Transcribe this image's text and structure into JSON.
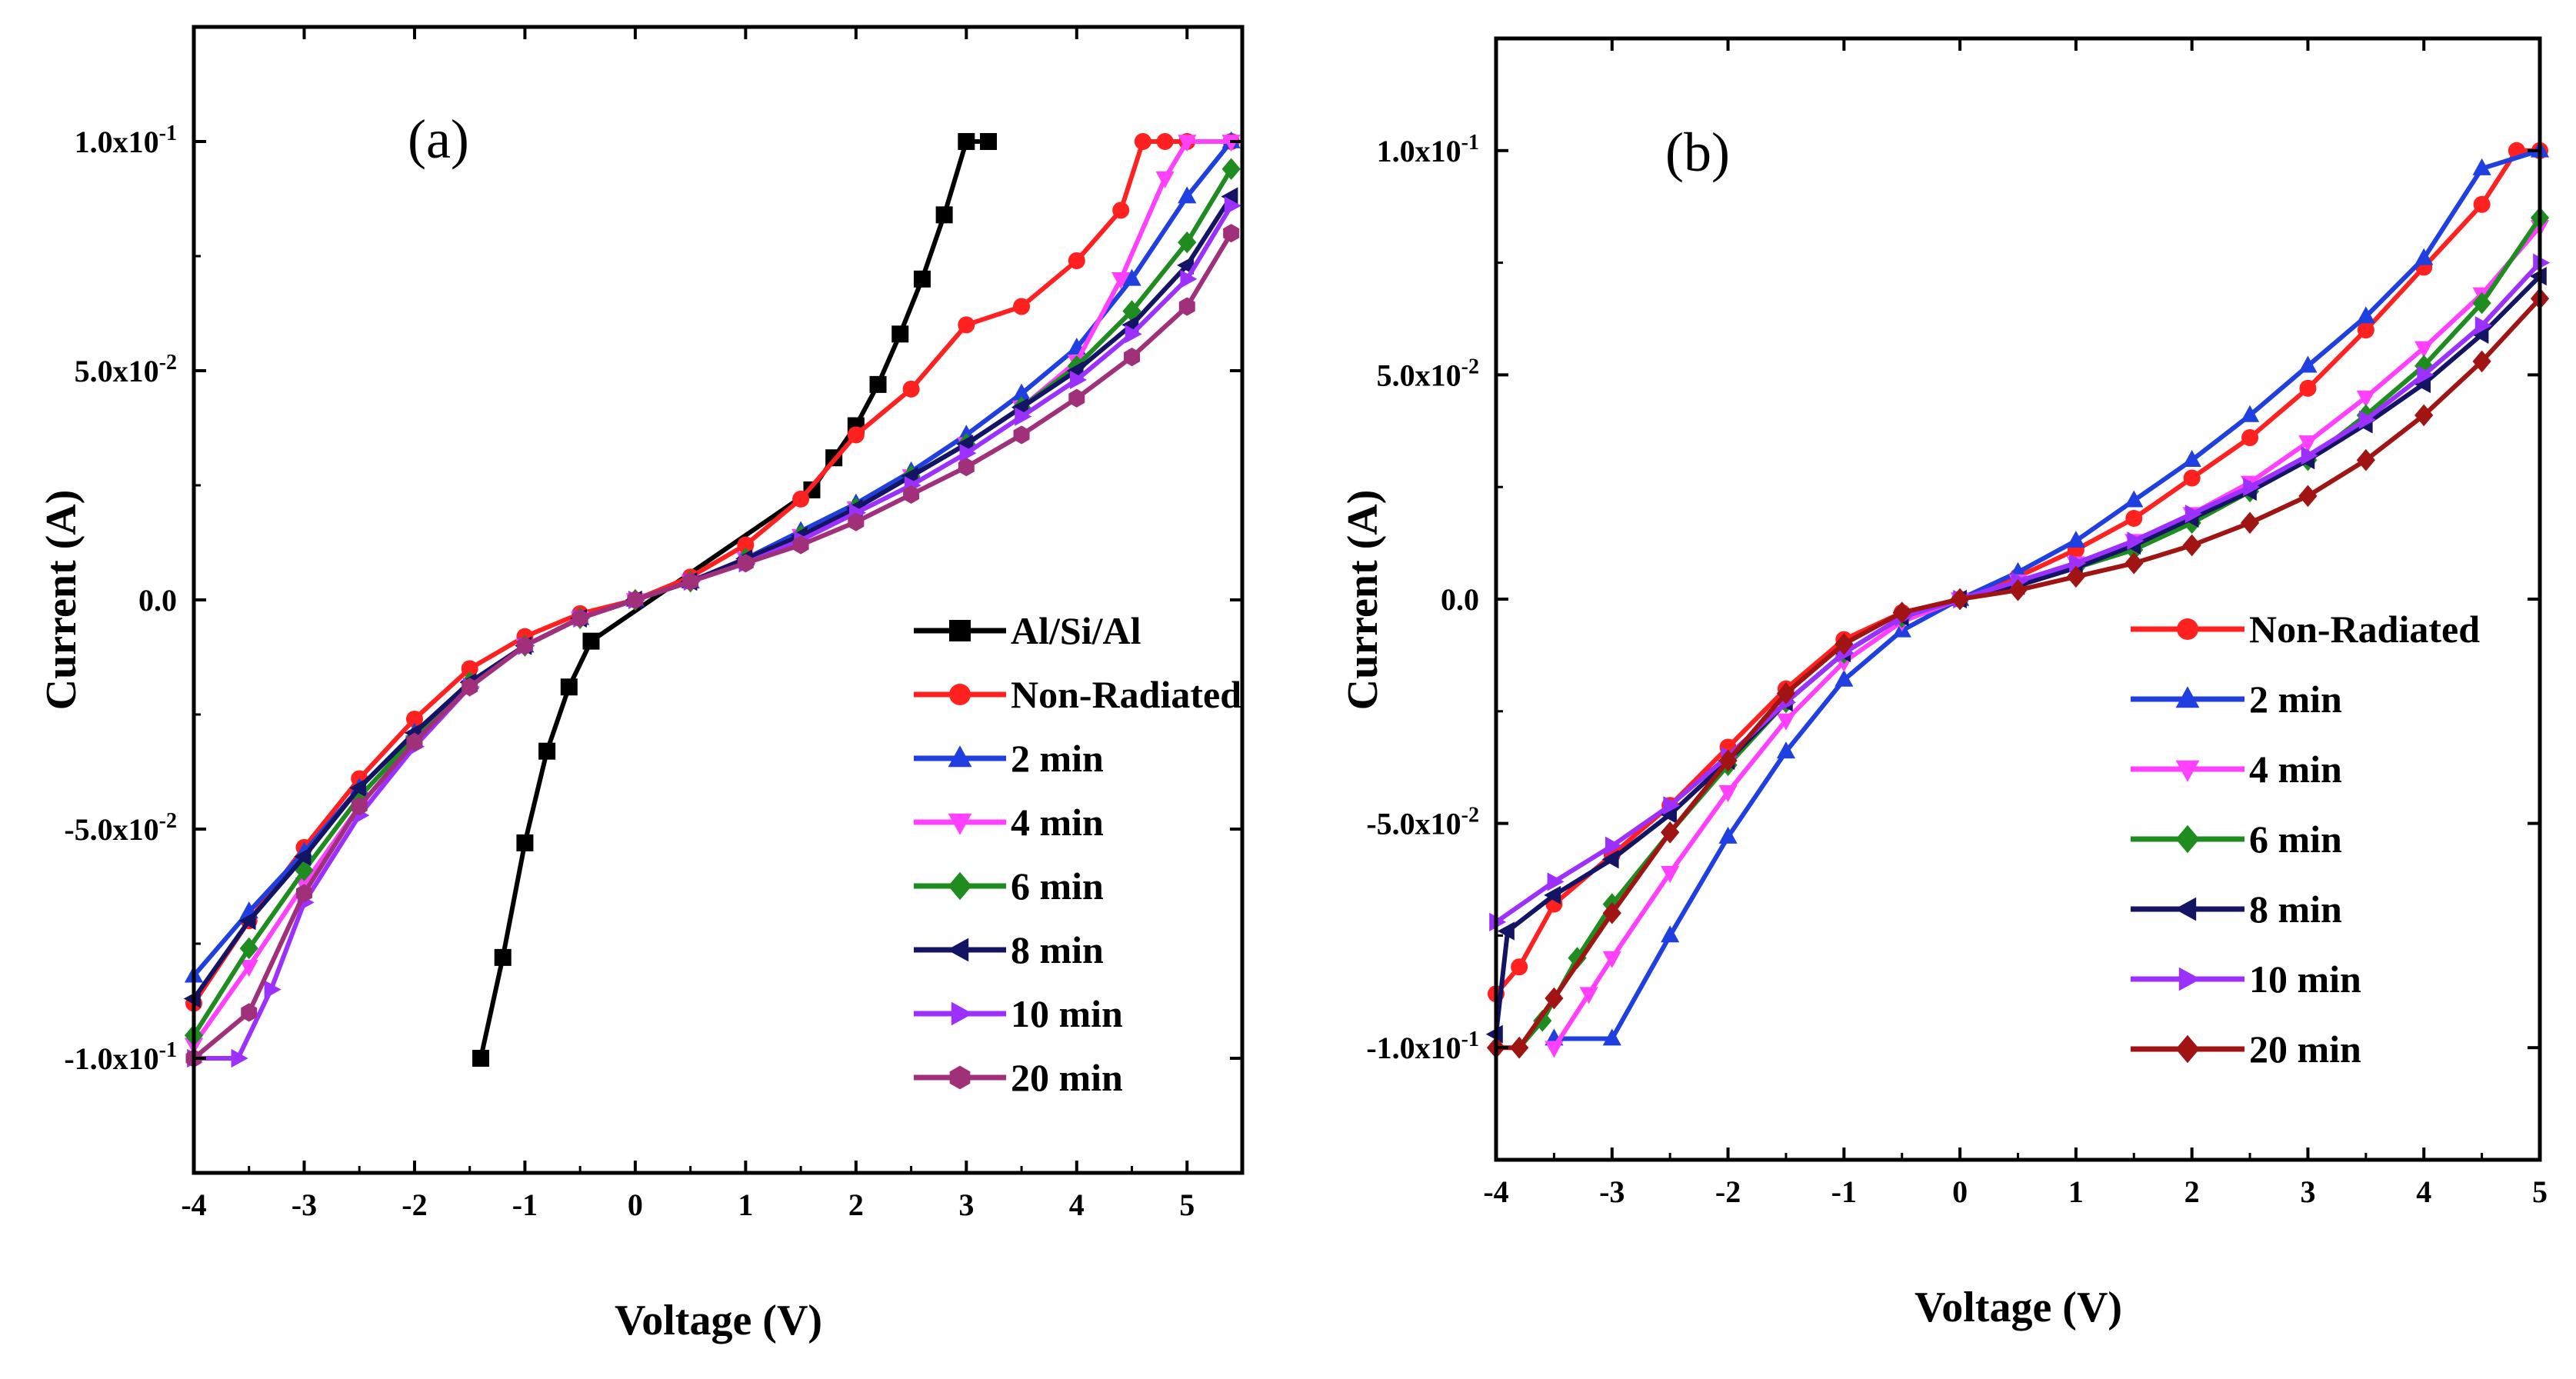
{
  "chart_data": [
    {
      "type": "line",
      "panel_label": "(a)",
      "xlabel": "Voltage (V)",
      "ylabel": "Current (A)",
      "xlim": [
        -4,
        5.5
      ],
      "ylim": [
        -0.125,
        0.125
      ],
      "xticks": [
        -4,
        -3,
        -2,
        -1,
        0,
        1,
        2,
        3,
        4,
        5
      ],
      "xtick_labels": [
        "-4",
        "-3",
        "-2",
        "-1",
        "0",
        "1",
        "2",
        "3",
        "4",
        "5"
      ],
      "yticks": [
        -0.1,
        -0.05,
        0,
        0.05,
        0.1
      ],
      "ytick_labels": [
        "-1.0x10-1",
        "-5.0x10-2",
        "0.0",
        "5.0x10-2",
        "1.0x10-1"
      ],
      "legend_position": "bottom-right",
      "series": [
        {
          "name": "Al/Si/Al",
          "color": "#000000",
          "marker": "square",
          "x": [
            -1.4,
            -1.2,
            -1.0,
            -0.8,
            -0.6,
            -0.4,
            1.6,
            1.8,
            2.0,
            2.2,
            2.4,
            2.6,
            2.8,
            3.0,
            3.2
          ],
          "y": [
            -0.1,
            -0.078,
            -0.053,
            -0.033,
            -0.019,
            -0.009,
            0.024,
            0.031,
            0.038,
            0.047,
            0.058,
            0.07,
            0.084,
            0.1,
            0.1
          ]
        },
        {
          "name": "Non-Radiated",
          "color": "#ff2020",
          "marker": "circle",
          "x": [
            -4.0,
            -3.5,
            -3.0,
            -2.5,
            -2.0,
            -1.5,
            -1.0,
            -0.5,
            0.0,
            0.5,
            1.0,
            1.5,
            2.0,
            2.5,
            3.0,
            3.5,
            4.0,
            4.4,
            4.6,
            4.8,
            5.0,
            5.4
          ],
          "y": [
            -0.088,
            -0.07,
            -0.054,
            -0.039,
            -0.026,
            -0.015,
            -0.008,
            -0.003,
            0.0,
            0.005,
            0.012,
            0.022,
            0.036,
            0.046,
            0.06,
            0.064,
            0.074,
            0.085,
            0.1,
            0.1,
            0.1,
            0.1
          ]
        },
        {
          "name": "2 min",
          "color": "#1f3fe0",
          "marker": "triangle-up",
          "x": [
            -4.0,
            -3.5,
            -3.0,
            -2.5,
            -2.0,
            -1.5,
            -1.0,
            -0.5,
            0.0,
            0.5,
            1.0,
            1.5,
            2.0,
            2.5,
            3.0,
            3.5,
            4.0,
            4.5,
            5.0,
            5.4
          ],
          "y": [
            -0.082,
            -0.068,
            -0.055,
            -0.041,
            -0.029,
            -0.018,
            -0.01,
            -0.004,
            0.0,
            0.004,
            0.009,
            0.015,
            0.021,
            0.028,
            0.036,
            0.045,
            0.055,
            0.07,
            0.088,
            0.1
          ]
        },
        {
          "name": "4 min",
          "color": "#ff40ff",
          "marker": "triangle-down",
          "x": [
            -4.0,
            -3.5,
            -3.0,
            -2.5,
            -2.0,
            -1.5,
            -1.0,
            -0.5,
            0.0,
            0.5,
            1.0,
            1.5,
            2.0,
            2.5,
            3.0,
            3.5,
            4.0,
            4.4,
            4.8,
            5.0,
            5.4
          ],
          "y": [
            -0.097,
            -0.08,
            -0.062,
            -0.045,
            -0.031,
            -0.019,
            -0.01,
            -0.004,
            0.0,
            0.004,
            0.009,
            0.014,
            0.02,
            0.027,
            0.034,
            0.042,
            0.052,
            0.07,
            0.092,
            0.1,
            0.1
          ]
        },
        {
          "name": "6 min",
          "color": "#1e8c1e",
          "marker": "diamond",
          "x": [
            -4.0,
            -3.5,
            -3.0,
            -2.5,
            -2.0,
            -1.5,
            -1.0,
            -0.5,
            0.0,
            0.5,
            1.0,
            1.5,
            2.0,
            2.5,
            3.0,
            3.5,
            4.0,
            4.5,
            5.0,
            5.4
          ],
          "y": [
            -0.095,
            -0.076,
            -0.059,
            -0.043,
            -0.03,
            -0.018,
            -0.01,
            -0.004,
            0.0,
            0.004,
            0.009,
            0.014,
            0.02,
            0.027,
            0.034,
            0.042,
            0.051,
            0.063,
            0.078,
            0.094
          ]
        },
        {
          "name": "8 min",
          "color": "#141464",
          "marker": "triangle-left",
          "x": [
            -4.0,
            -3.5,
            -3.0,
            -2.5,
            -2.0,
            -1.5,
            -1.0,
            -0.5,
            0.0,
            0.5,
            1.0,
            1.5,
            2.0,
            2.5,
            3.0,
            3.5,
            4.0,
            4.5,
            5.0,
            5.4
          ],
          "y": [
            -0.087,
            -0.07,
            -0.056,
            -0.041,
            -0.029,
            -0.018,
            -0.01,
            -0.004,
            0.0,
            0.004,
            0.009,
            0.014,
            0.02,
            0.027,
            0.034,
            0.042,
            0.05,
            0.06,
            0.073,
            0.088
          ]
        },
        {
          "name": "10 min",
          "color": "#9b30ff",
          "marker": "triangle-right",
          "x": [
            -4.0,
            -3.6,
            -3.3,
            -3.0,
            -2.5,
            -2.0,
            -1.5,
            -1.0,
            -0.5,
            0.0,
            0.5,
            1.0,
            1.5,
            2.0,
            2.5,
            3.0,
            3.5,
            4.0,
            4.5,
            5.0,
            5.4
          ],
          "y": [
            -0.1,
            -0.1,
            -0.085,
            -0.066,
            -0.047,
            -0.032,
            -0.019,
            -0.01,
            -0.004,
            0.0,
            0.004,
            0.008,
            0.013,
            0.019,
            0.025,
            0.032,
            0.04,
            0.048,
            0.058,
            0.07,
            0.086
          ]
        },
        {
          "name": "20 min",
          "color": "#a0307a",
          "marker": "hexagon",
          "x": [
            -4.0,
            -3.5,
            -3.0,
            -2.5,
            -2.0,
            -1.5,
            -1.0,
            -0.5,
            0.0,
            0.5,
            1.0,
            1.5,
            2.0,
            2.5,
            3.0,
            3.5,
            4.0,
            4.5,
            5.0,
            5.4
          ],
          "y": [
            -0.1,
            -0.09,
            -0.064,
            -0.045,
            -0.031,
            -0.019,
            -0.01,
            -0.004,
            0.0,
            0.004,
            0.008,
            0.012,
            0.017,
            0.023,
            0.029,
            0.036,
            0.044,
            0.053,
            0.064,
            0.08
          ]
        }
      ]
    },
    {
      "type": "line",
      "panel_label": "(b)",
      "xlabel": "Voltage (V)",
      "ylabel": "Current (A)",
      "xlim": [
        -4,
        5
      ],
      "ylim": [
        -0.125,
        0.125
      ],
      "xticks": [
        -4,
        -3,
        -2,
        -1,
        0,
        1,
        2,
        3,
        4,
        5
      ],
      "xtick_labels": [
        "-4",
        "-3",
        "-2",
        "-1",
        "0",
        "1",
        "2",
        "3",
        "4",
        "5"
      ],
      "yticks": [
        -0.1,
        -0.05,
        0,
        0.05,
        0.1
      ],
      "ytick_labels": [
        "-1.0x10-1",
        "-5.0x10-2",
        "0.0",
        "5.0x10-2",
        "1.0x10-1"
      ],
      "legend_position": "bottom-right",
      "series": [
        {
          "name": "Non-Radiated",
          "color": "#ff2020",
          "marker": "circle",
          "x": [
            -4.0,
            -3.8,
            -3.5,
            -3.0,
            -2.5,
            -2.0,
            -1.5,
            -1.0,
            -0.5,
            0.0,
            0.5,
            1.0,
            1.5,
            2.0,
            2.5,
            3.0,
            3.5,
            4.0,
            4.5,
            4.8,
            5.0
          ],
          "y": [
            -0.088,
            -0.082,
            -0.068,
            -0.057,
            -0.046,
            -0.033,
            -0.02,
            -0.009,
            -0.003,
            0.0,
            0.005,
            0.011,
            0.018,
            0.027,
            0.036,
            0.047,
            0.06,
            0.074,
            0.088,
            0.1,
            0.1
          ]
        },
        {
          "name": "2 min",
          "color": "#1f3fe0",
          "marker": "triangle-up",
          "x": [
            -3.5,
            -3.0,
            -2.5,
            -2.0,
            -1.5,
            -1.0,
            -0.5,
            0.0,
            0.5,
            1.0,
            1.5,
            2.0,
            2.5,
            3.0,
            3.5,
            4.0,
            4.5,
            5.0
          ],
          "y": [
            -0.098,
            -0.098,
            -0.075,
            -0.053,
            -0.034,
            -0.018,
            -0.007,
            0.0,
            0.006,
            0.013,
            0.022,
            0.031,
            0.041,
            0.052,
            0.063,
            0.076,
            0.096,
            0.1
          ]
        },
        {
          "name": "4 min",
          "color": "#ff40ff",
          "marker": "triangle-down",
          "x": [
            -3.5,
            -3.2,
            -3.0,
            -2.5,
            -2.0,
            -1.5,
            -1.0,
            -0.5,
            0.0,
            0.5,
            1.0,
            1.5,
            2.0,
            2.5,
            3.0,
            3.5,
            4.0,
            4.5,
            5.0
          ],
          "y": [
            -0.1,
            -0.088,
            -0.08,
            -0.061,
            -0.043,
            -0.027,
            -0.014,
            -0.005,
            0.0,
            0.004,
            0.008,
            0.013,
            0.019,
            0.026,
            0.035,
            0.045,
            0.056,
            0.068,
            0.083
          ]
        },
        {
          "name": "6 min",
          "color": "#1e8c1e",
          "marker": "diamond",
          "x": [
            -3.8,
            -3.6,
            -3.3,
            -3.0,
            -2.5,
            -2.0,
            -1.5,
            -1.0,
            -0.5,
            0.0,
            0.5,
            1.0,
            1.5,
            2.0,
            2.5,
            3.0,
            3.5,
            4.0,
            4.5,
            5.0
          ],
          "y": [
            -0.1,
            -0.094,
            -0.08,
            -0.068,
            -0.052,
            -0.037,
            -0.023,
            -0.012,
            -0.004,
            0.0,
            0.003,
            0.007,
            0.011,
            0.017,
            0.024,
            0.031,
            0.041,
            0.052,
            0.066,
            0.085
          ]
        },
        {
          "name": "8 min",
          "color": "#141464",
          "marker": "triangle-left",
          "x": [
            -4.0,
            -3.9,
            -3.5,
            -3.0,
            -2.5,
            -2.0,
            -1.5,
            -1.0,
            -0.5,
            0.0,
            0.5,
            1.0,
            1.5,
            2.0,
            2.5,
            3.0,
            3.5,
            4.0,
            4.5,
            5.0
          ],
          "y": [
            -0.097,
            -0.074,
            -0.066,
            -0.058,
            -0.048,
            -0.036,
            -0.023,
            -0.012,
            -0.004,
            0.0,
            0.003,
            0.007,
            0.012,
            0.018,
            0.024,
            0.031,
            0.039,
            0.048,
            0.059,
            0.072
          ]
        },
        {
          "name": "10 min",
          "color": "#9b30ff",
          "marker": "triangle-right",
          "x": [
            -4.0,
            -3.5,
            -3.0,
            -2.5,
            -2.0,
            -1.5,
            -1.0,
            -0.5,
            0.0,
            0.5,
            1.0,
            1.5,
            2.0,
            2.5,
            3.0,
            3.5,
            4.0,
            4.5,
            5.0
          ],
          "y": [
            -0.072,
            -0.063,
            -0.055,
            -0.046,
            -0.035,
            -0.023,
            -0.012,
            -0.004,
            0.0,
            0.004,
            0.008,
            0.013,
            0.019,
            0.025,
            0.032,
            0.04,
            0.05,
            0.061,
            0.075
          ]
        },
        {
          "name": "20 min",
          "color": "#a01414",
          "marker": "diamond",
          "x": [
            -4.0,
            -3.8,
            -3.5,
            -3.0,
            -2.5,
            -2.0,
            -1.5,
            -1.0,
            -0.5,
            0.0,
            0.5,
            1.0,
            1.5,
            2.0,
            2.5,
            3.0,
            3.5,
            4.0,
            4.5,
            5.0
          ],
          "y": [
            -0.1,
            -0.1,
            -0.089,
            -0.07,
            -0.052,
            -0.036,
            -0.021,
            -0.01,
            -0.003,
            0.0,
            0.002,
            0.005,
            0.008,
            0.012,
            0.017,
            0.023,
            0.031,
            0.041,
            0.053,
            0.067
          ]
        }
      ]
    }
  ]
}
